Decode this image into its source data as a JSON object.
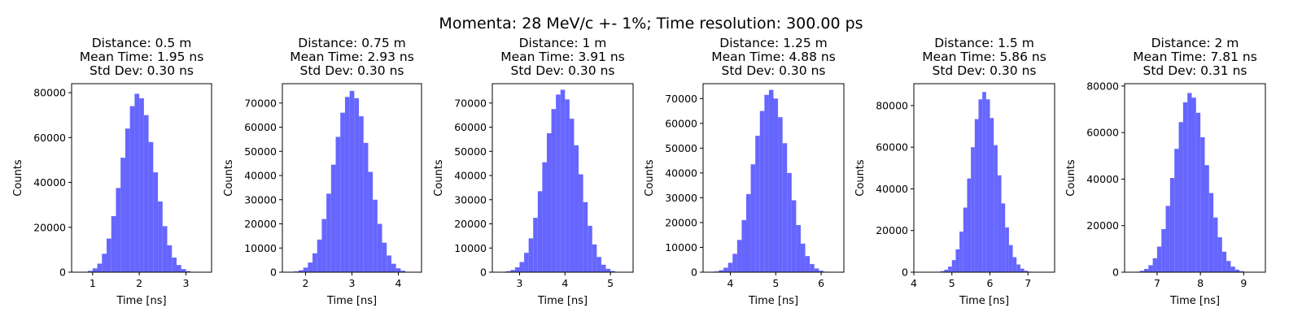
{
  "figure": {
    "suptitle": "Momenta: 28 MeV/c +- 1%; Time resolution: 300.00 ps"
  },
  "style": {
    "bar_color": "#6666ff",
    "axis_color": "#000000"
  },
  "chart_data": [
    {
      "type": "bar",
      "title_lines": [
        "Distance: 0.5 m",
        "Mean Time: 1.95 ns",
        "Std Dev: 0.30 ns"
      ],
      "xlabel": "Time [ns]",
      "ylabel": "Counts",
      "xlim": [
        0.55,
        3.55
      ],
      "ylim": [
        0,
        84000
      ],
      "xticks": [
        1,
        2,
        3
      ],
      "yticks": [
        0,
        20000,
        40000,
        60000,
        80000
      ],
      "bins": {
        "centers": [
          0.85,
          0.95,
          1.05,
          1.15,
          1.25,
          1.35,
          1.45,
          1.55,
          1.65,
          1.75,
          1.85,
          1.95,
          2.05,
          2.15,
          2.25,
          2.35,
          2.45,
          2.55,
          2.65,
          2.75,
          2.85,
          2.95,
          3.05
        ],
        "width": 0.1
      },
      "values": [
        200,
        600,
        1700,
        3800,
        8200,
        15000,
        25000,
        37500,
        51000,
        64000,
        74000,
        79500,
        77500,
        70000,
        58000,
        44500,
        31500,
        20500,
        12000,
        6500,
        3200,
        1400,
        500
      ]
    },
    {
      "type": "bar",
      "title_lines": [
        "Distance: 0.75 m",
        "Mean Time: 2.93 ns",
        "Std Dev: 0.30 ns"
      ],
      "xlabel": "Time [ns]",
      "ylabel": "Counts",
      "xlim": [
        1.5,
        4.5
      ],
      "ylim": [
        0,
        78000
      ],
      "xticks": [
        2,
        3,
        4
      ],
      "yticks": [
        0,
        10000,
        20000,
        30000,
        40000,
        50000,
        60000,
        70000
      ],
      "bins": {
        "centers": [
          1.8,
          1.9,
          2.0,
          2.1,
          2.2,
          2.3,
          2.4,
          2.5,
          2.6,
          2.7,
          2.8,
          2.9,
          3.0,
          3.1,
          3.2,
          3.3,
          3.4,
          3.5,
          3.6,
          3.7,
          3.8,
          3.9,
          4.0,
          4.1
        ],
        "width": 0.1
      },
      "values": [
        300,
        800,
        1900,
        4000,
        7800,
        13500,
        22000,
        32500,
        44500,
        56000,
        66000,
        72500,
        75000,
        72000,
        64500,
        53500,
        41500,
        30000,
        20000,
        12200,
        6900,
        3500,
        1600,
        600
      ]
    },
    {
      "type": "bar",
      "title_lines": [
        "Distance: 1 m",
        "Mean Time: 3.91 ns",
        "Std Dev: 0.30 ns"
      ],
      "xlabel": "Time [ns]",
      "ylabel": "Counts",
      "xlim": [
        2.4,
        5.5
      ],
      "ylim": [
        0,
        78000
      ],
      "xticks": [
        3,
        4,
        5
      ],
      "yticks": [
        0,
        10000,
        20000,
        30000,
        40000,
        50000,
        60000,
        70000
      ],
      "bins": {
        "centers": [
          2.75,
          2.85,
          2.95,
          3.05,
          3.15,
          3.25,
          3.35,
          3.45,
          3.55,
          3.65,
          3.75,
          3.85,
          3.95,
          4.05,
          4.15,
          4.25,
          4.35,
          4.45,
          4.55,
          4.65,
          4.75,
          4.85,
          4.95,
          5.05
        ],
        "width": 0.1
      },
      "values": [
        400,
        900,
        2000,
        4200,
        8000,
        14000,
        22500,
        33500,
        45500,
        57500,
        67500,
        73500,
        75500,
        71500,
        63500,
        52500,
        40500,
        29000,
        19200,
        11500,
        6300,
        3100,
        1400,
        500
      ]
    },
    {
      "type": "bar",
      "title_lines": [
        "Distance: 1.25 m",
        "Mean Time: 4.88 ns",
        "Std Dev: 0.30 ns"
      ],
      "xlabel": "Time [ns]",
      "ylabel": "Counts",
      "xlim": [
        3.4,
        6.5
      ],
      "ylim": [
        0,
        76000
      ],
      "xticks": [
        4,
        5,
        6
      ],
      "yticks": [
        0,
        10000,
        20000,
        30000,
        40000,
        50000,
        60000,
        70000
      ],
      "bins": {
        "centers": [
          3.7,
          3.8,
          3.9,
          4.0,
          4.1,
          4.2,
          4.3,
          4.4,
          4.5,
          4.6,
          4.7,
          4.8,
          4.9,
          5.0,
          5.1,
          5.2,
          5.3,
          5.4,
          5.5,
          5.6,
          5.7,
          5.8,
          5.9,
          6.0,
          6.1
        ],
        "width": 0.1
      },
      "values": [
        300,
        800,
        1800,
        3800,
        7400,
        13000,
        21000,
        31500,
        43500,
        55000,
        65000,
        71500,
        73500,
        70000,
        62500,
        52000,
        40000,
        29000,
        19000,
        11500,
        6500,
        3300,
        1500,
        600,
        200
      ]
    },
    {
      "type": "bar",
      "title_lines": [
        "Distance: 1.5 m",
        "Mean Time: 5.86 ns",
        "Std Dev: 0.30 ns"
      ],
      "xlabel": "Time [ns]",
      "ylabel": "Counts",
      "xlim": [
        4,
        7.7
      ],
      "ylim": [
        0,
        90500
      ],
      "xticks": [
        4,
        5,
        6,
        7
      ],
      "yticks": [
        0,
        20000,
        40000,
        60000,
        80000
      ],
      "bins": {
        "centers": [
          4.65,
          4.75,
          4.85,
          4.95,
          5.05,
          5.15,
          5.25,
          5.35,
          5.45,
          5.55,
          5.65,
          5.75,
          5.85,
          5.95,
          6.05,
          6.15,
          6.25,
          6.35,
          6.45,
          6.55,
          6.65,
          6.75,
          6.85,
          6.95,
          7.05
        ],
        "width": 0.1
      },
      "values": [
        200,
        500,
        1200,
        2700,
        5800,
        11000,
        19500,
        31000,
        45000,
        60000,
        73500,
        83000,
        86500,
        83000,
        74000,
        61000,
        46500,
        33000,
        21500,
        13000,
        7200,
        3700,
        1700,
        700,
        250
      ]
    },
    {
      "type": "bar",
      "title_lines": [
        "Distance: 2 m",
        "Mean Time: 7.81 ns",
        "Std Dev: 0.31 ns"
      ],
      "xlabel": "Time [ns]",
      "ylabel": "Counts",
      "xlim": [
        6.25,
        9.5
      ],
      "ylim": [
        0,
        81000
      ],
      "xticks": [
        7,
        8,
        9
      ],
      "yticks": [
        0,
        20000,
        40000,
        60000,
        80000
      ],
      "bins": {
        "centers": [
          6.55,
          6.65,
          6.75,
          6.85,
          6.95,
          7.05,
          7.15,
          7.25,
          7.35,
          7.45,
          7.55,
          7.65,
          7.75,
          7.85,
          7.95,
          8.05,
          8.15,
          8.25,
          8.35,
          8.45,
          8.55,
          8.65,
          8.75,
          8.85,
          8.95,
          9.05
        ],
        "width": 0.1
      },
      "values": [
        200,
        600,
        1400,
        3000,
        6000,
        11000,
        18500,
        28500,
        40500,
        53000,
        64500,
        73000,
        77000,
        75000,
        68500,
        58000,
        46000,
        34000,
        23500,
        15000,
        8800,
        4800,
        2400,
        1100,
        450,
        150
      ]
    }
  ]
}
